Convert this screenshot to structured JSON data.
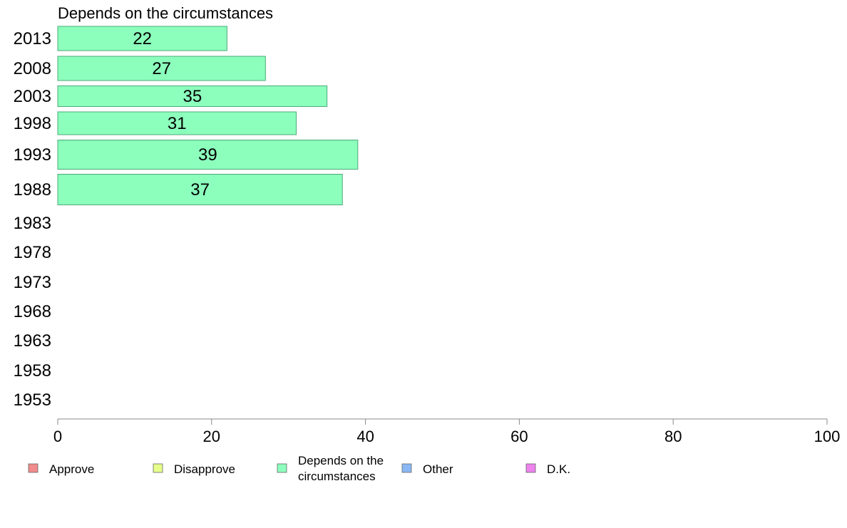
{
  "chart_data": {
    "type": "bar",
    "orientation": "horizontal",
    "title": "Depends on the circumstances",
    "categories": [
      "2013",
      "2008",
      "2003",
      "1998",
      "1993",
      "1988",
      "1983",
      "1978",
      "1973",
      "1968",
      "1963",
      "1958",
      "1953"
    ],
    "series": [
      {
        "name": "Depends on the circumstances",
        "values": [
          22,
          27,
          35,
          31,
          39,
          37,
          null,
          null,
          null,
          null,
          null,
          null,
          null
        ],
        "color": "#8cffbd"
      }
    ],
    "xlim": [
      0,
      100
    ],
    "xticks": [
      "0",
      "20",
      "40",
      "60",
      "80",
      "100"
    ],
    "grid": false,
    "legend": {
      "placement": "bottom",
      "items": [
        {
          "label": "Approve",
          "color": "#f28b8b"
        },
        {
          "label": "Disapprove",
          "color": "#e6ff8a"
        },
        {
          "label": "Depends on the circumstances",
          "color": "#8cffbd"
        },
        {
          "label": "Other",
          "color": "#8ab8f5"
        },
        {
          "label": "D.K.",
          "color": "#ee82ee"
        }
      ]
    }
  }
}
